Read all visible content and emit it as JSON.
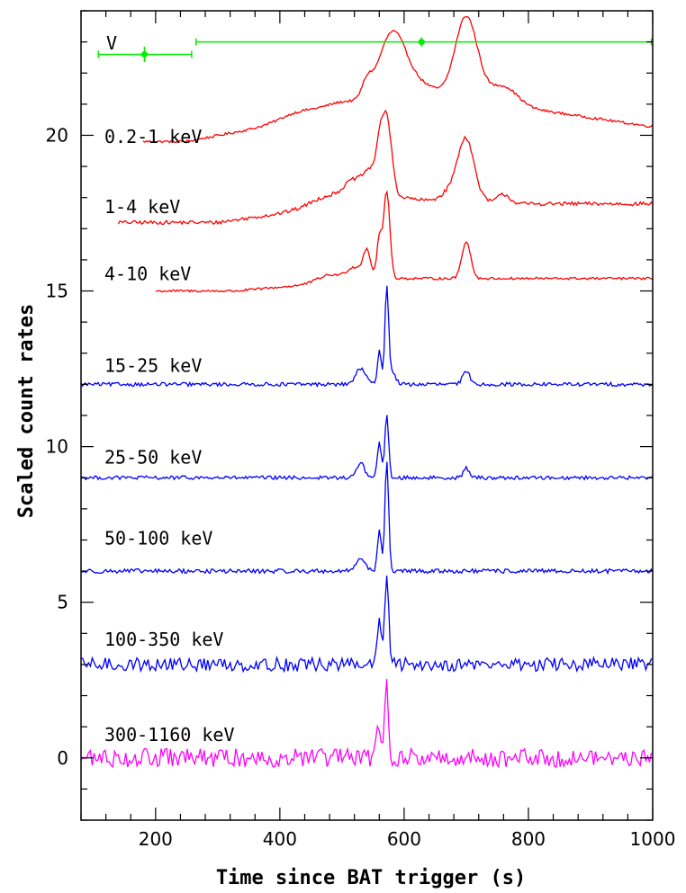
{
  "chart_data": {
    "type": "line",
    "title": "",
    "xlabel": "Time since BAT trigger (s)",
    "ylabel": "Scaled count rates",
    "xlim": [
      80,
      1000
    ],
    "ylim": [
      -2,
      24
    ],
    "x_ticks": [
      200,
      400,
      600,
      800,
      1000
    ],
    "y_ticks": [
      0,
      5,
      10,
      15,
      20
    ],
    "grid": false,
    "colors": {
      "xrt": "#ff0000",
      "bat": "#0000ff",
      "gbm": "#ff00ff",
      "optical": "#00ee00"
    },
    "optical_band": {
      "label": "V",
      "points": [
        {
          "x": 182,
          "y": 22.6,
          "xerr": [
            108,
            258
          ],
          "yerr": 0.25
        },
        {
          "x": 628,
          "y": 23.0,
          "xerr": [
            265,
            998
          ],
          "yerr": 0.15
        }
      ]
    },
    "series": [
      {
        "name": "0.2-1 keV",
        "color": "xrt",
        "baseline": 19.0,
        "x_start": 180,
        "x_end": 1000,
        "noise": 0.04,
        "peaks": [
          [
            580,
            2.1,
            22
          ],
          [
            700,
            2.7,
            18
          ],
          [
            540,
            0.5,
            8
          ],
          [
            625,
            0.5,
            30
          ],
          [
            760,
            0.6,
            22
          ],
          [
            430,
            0.25,
            30
          ],
          [
            500,
            0.3,
            30
          ]
        ],
        "ramps": [
          [
            250,
            590,
            1.3
          ],
          [
            720,
            990,
            -0.8
          ]
        ],
        "label": "0.2-1 keV",
        "label_y": 19.95
      },
      {
        "name": "1-4 keV",
        "color": "xrt",
        "baseline": 17.0,
        "x_start": 140,
        "x_end": 1000,
        "noise": 0.06,
        "peaks": [
          [
            572,
            2.5,
            8
          ],
          [
            560,
            1.2,
            6
          ],
          [
            545,
            0.8,
            10
          ],
          [
            520,
            0.6,
            15
          ],
          [
            700,
            1.5,
            12
          ],
          [
            690,
            0.7,
            22
          ],
          [
            760,
            0.3,
            10
          ],
          [
            480,
            0.35,
            30
          ]
        ],
        "ramps": [
          [
            300,
            580,
            0.8
          ],
          [
            600,
            660,
            -0.2
          ]
        ],
        "label": "1-4 keV",
        "label_y": 17.7
      },
      {
        "name": "4-10 keV",
        "color": "xrt",
        "baseline": 15.0,
        "x_start": 200,
        "x_end": 1000,
        "noise": 0.04,
        "peaks": [
          [
            572,
            2.8,
            5
          ],
          [
            560,
            1.3,
            4
          ],
          [
            540,
            0.9,
            6
          ],
          [
            520,
            0.4,
            12
          ],
          [
            700,
            1.2,
            7
          ],
          [
            480,
            0.25,
            20
          ]
        ],
        "ramps": [
          [
            330,
            560,
            0.4
          ]
        ],
        "label": "4-10 keV",
        "label_y": 15.55
      },
      {
        "name": "15-25 keV",
        "color": "bat",
        "baseline": 12.0,
        "x_start": 80,
        "x_end": 1000,
        "noise": 0.06,
        "peaks": [
          [
            572,
            3.0,
            3
          ],
          [
            560,
            1.1,
            3
          ],
          [
            530,
            0.5,
            8
          ],
          [
            580,
            0.4,
            6
          ],
          [
            700,
            0.4,
            6
          ]
        ],
        "ramps": [],
        "label": "15-25 keV",
        "label_y": 12.6
      },
      {
        "name": "25-50 keV",
        "color": "bat",
        "baseline": 9.0,
        "x_start": 80,
        "x_end": 1000,
        "noise": 0.06,
        "peaks": [
          [
            572,
            2.0,
            3
          ],
          [
            560,
            1.2,
            3
          ],
          [
            530,
            0.5,
            6
          ],
          [
            700,
            0.3,
            5
          ]
        ],
        "ramps": [],
        "label": "25-50 keV",
        "label_y": 9.65
      },
      {
        "name": "50-100 keV",
        "color": "bat",
        "baseline": 6.0,
        "x_start": 80,
        "x_end": 1000,
        "noise": 0.07,
        "peaks": [
          [
            572,
            3.5,
            3
          ],
          [
            560,
            1.3,
            3
          ],
          [
            530,
            0.4,
            8
          ]
        ],
        "ramps": [],
        "label": "50-100 keV",
        "label_y": 7.05
      },
      {
        "name": "100-350 keV",
        "color": "bat",
        "baseline": 3.0,
        "x_start": 80,
        "x_end": 1000,
        "noise": 0.22,
        "peaks": [
          [
            572,
            3.0,
            3
          ],
          [
            560,
            1.5,
            3
          ]
        ],
        "ramps": [],
        "label": "100-350 keV",
        "label_y": 3.8
      },
      {
        "name": "300-1160 keV",
        "color": "gbm",
        "baseline": 0.0,
        "x_start": 80,
        "x_end": 1000,
        "noise": 0.3,
        "peaks": [
          [
            572,
            2.3,
            3
          ],
          [
            558,
            1.0,
            4
          ]
        ],
        "ramps": [],
        "label": "300-1160 keV",
        "label_y": 0.75
      }
    ]
  }
}
